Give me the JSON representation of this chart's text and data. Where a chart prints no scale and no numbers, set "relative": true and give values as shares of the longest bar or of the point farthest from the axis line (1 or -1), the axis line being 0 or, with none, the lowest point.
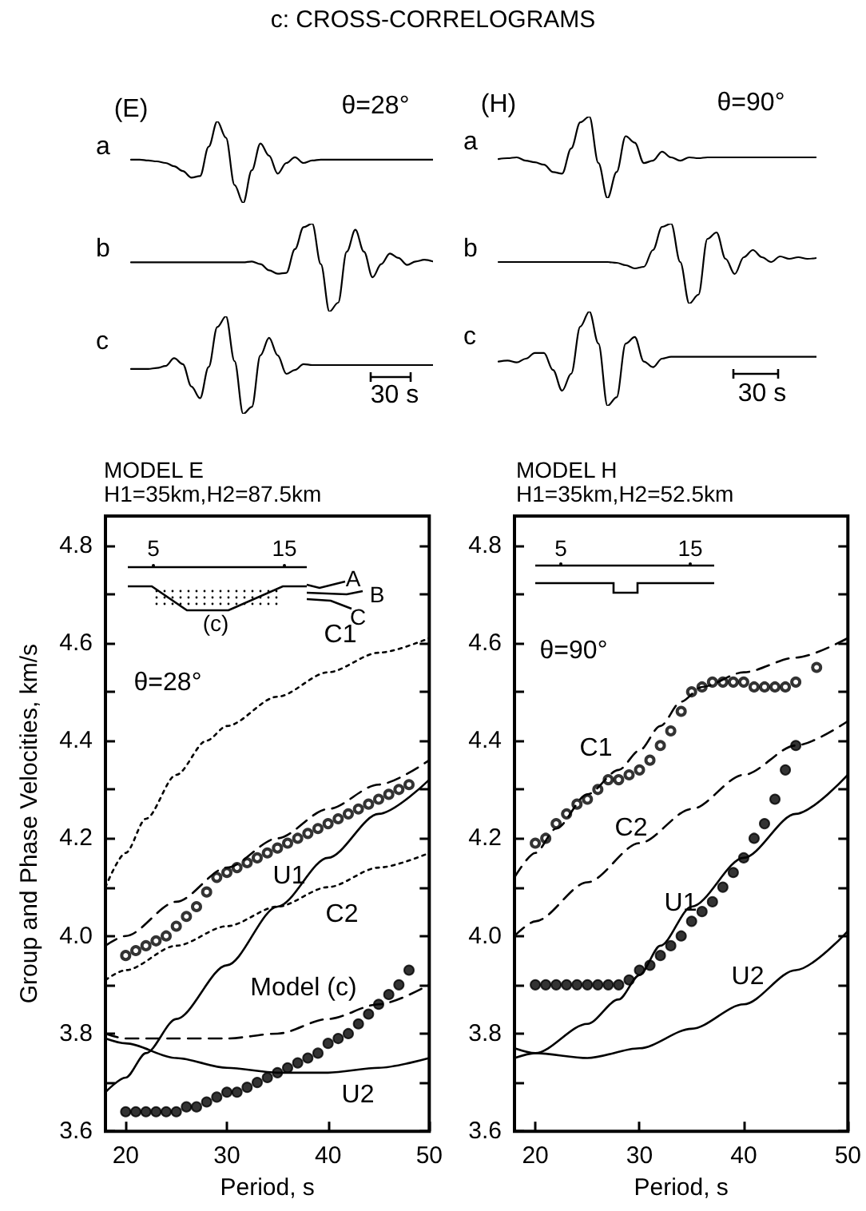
{
  "chart_data": [
    {
      "type": "line",
      "title": "c: CROSS-CORRELOGRAMS",
      "relative": true,
      "ylabel": "a",
      "annotations": [
        "(E)",
        "θ=28°"
      ],
      "categories": [
        null,
        null,
        null,
        null,
        null,
        null,
        null,
        null,
        null,
        null,
        null,
        null,
        null,
        null,
        null,
        null,
        null,
        null,
        null,
        null,
        null,
        null,
        null,
        null,
        null,
        null,
        null,
        null,
        null,
        null,
        null,
        null,
        null,
        null,
        null,
        null
      ],
      "series": [
        {
          "color": "#000000",
          "values": [
            0.53,
            0.53,
            0.52,
            0.51,
            0.49,
            0.45,
            0.39,
            0.31,
            0.33,
            0.69,
            1,
            0.8,
            0.22,
            0,
            0.4,
            0.73,
            0.58,
            0.36,
            0.49,
            0.56,
            0.49,
            0.52,
            0.53,
            0.53,
            0.53,
            0.53,
            0.53,
            0.53,
            0.53,
            0.53,
            0.53,
            0.53,
            0.53,
            0.53,
            0.53,
            0.53
          ]
        }
      ]
    },
    {
      "type": "line",
      "relative": true,
      "ylabel": "b",
      "categories": [
        null,
        null,
        null,
        null,
        null,
        null,
        null,
        null,
        null,
        null,
        null,
        null,
        null,
        null,
        null,
        null,
        null,
        null,
        null,
        null,
        null,
        null,
        null,
        null,
        null,
        null,
        null,
        null,
        null,
        null,
        null,
        null,
        null,
        null,
        null,
        null
      ],
      "series": [
        {
          "color": "#000000",
          "values": [
            0.56,
            0.56,
            0.56,
            0.56,
            0.56,
            0.56,
            0.56,
            0.56,
            0.56,
            0.56,
            0.56,
            0.56,
            0.56,
            0.56,
            0.57,
            0.54,
            0.47,
            0.43,
            0.44,
            0.71,
            0.96,
            1,
            0.54,
            0,
            0.1,
            0.68,
            0.93,
            0.68,
            0.39,
            0.54,
            0.66,
            0.61,
            0.53,
            0.57,
            0.59,
            0.57
          ]
        }
      ]
    },
    {
      "type": "line",
      "relative": true,
      "ylabel": "c",
      "annotations": [
        "30 s"
      ],
      "categories": [
        null,
        null,
        null,
        null,
        null,
        null,
        null,
        null,
        null,
        null,
        null,
        null,
        null,
        null,
        null,
        null,
        null,
        null,
        null,
        null,
        null,
        null,
        null,
        null,
        null,
        null,
        null,
        null,
        null,
        null,
        null,
        null,
        null,
        null,
        null,
        null
      ],
      "series": [
        {
          "color": "#000000",
          "values": [
            0.46,
            0.46,
            0.46,
            0.47,
            0.49,
            0.57,
            0.51,
            0.28,
            0.16,
            0.48,
            0.89,
            1,
            0.54,
            0,
            0.07,
            0.6,
            0.78,
            0.6,
            0.41,
            0.45,
            0.51,
            0.5,
            0.5,
            0.5,
            0.5,
            0.5,
            0.5,
            0.5,
            0.5,
            0.5,
            0.5,
            0.5,
            0.5,
            0.5,
            0.5,
            0.5
          ]
        }
      ]
    },
    {
      "type": "line",
      "relative": true,
      "ylabel": "a",
      "annotations": [
        "(H)",
        "θ=90°"
      ],
      "categories": [
        null,
        null,
        null,
        null,
        null,
        null,
        null,
        null,
        null,
        null,
        null,
        null,
        null,
        null,
        null,
        null,
        null,
        null,
        null,
        null,
        null,
        null,
        null,
        null,
        null,
        null,
        null,
        null,
        null,
        null,
        null,
        null,
        null,
        null,
        null,
        null
      ],
      "series": [
        {
          "color": "#000000",
          "values": [
            0.48,
            0.49,
            0.5,
            0.46,
            0.44,
            0.41,
            0.32,
            0.3,
            0.61,
            0.93,
            1,
            0.43,
            0,
            0.32,
            0.76,
            0.68,
            0.43,
            0.46,
            0.57,
            0.5,
            0.46,
            0.5,
            0.49,
            0.5,
            0.5,
            0.5,
            0.5,
            0.5,
            0.5,
            0.5,
            0.5,
            0.5,
            0.5,
            0.5,
            0.5,
            0.5
          ]
        }
      ]
    },
    {
      "type": "line",
      "relative": true,
      "ylabel": "b",
      "categories": [
        null,
        null,
        null,
        null,
        null,
        null,
        null,
        null,
        null,
        null,
        null,
        null,
        null,
        null,
        null,
        null,
        null,
        null,
        null,
        null,
        null,
        null,
        null,
        null,
        null,
        null,
        null,
        null,
        null,
        null,
        null,
        null,
        null,
        null,
        null,
        null
      ],
      "series": [
        {
          "color": "#000000",
          "values": [
            0.52,
            0.52,
            0.52,
            0.52,
            0.52,
            0.52,
            0.52,
            0.52,
            0.52,
            0.52,
            0.52,
            0.52,
            0.52,
            0.51,
            0.48,
            0.44,
            0.46,
            0.67,
            0.96,
            1,
            0.52,
            0,
            0.11,
            0.81,
            0.89,
            0.56,
            0.37,
            0.58,
            0.67,
            0.58,
            0.52,
            0.59,
            0.56,
            0.58,
            0.56,
            0.57
          ]
        }
      ]
    },
    {
      "type": "line",
      "relative": true,
      "ylabel": "c",
      "annotations": [
        "30 s"
      ],
      "categories": [
        null,
        null,
        null,
        null,
        null,
        null,
        null,
        null,
        null,
        null,
        null,
        null,
        null,
        null,
        null,
        null,
        null,
        null,
        null,
        null,
        null,
        null,
        null,
        null,
        null,
        null,
        null,
        null,
        null,
        null,
        null,
        null,
        null,
        null,
        null,
        null
      ],
      "series": [
        {
          "color": "#000000",
          "values": [
            0.47,
            0.48,
            0.46,
            0.5,
            0.56,
            0.56,
            0.38,
            0.16,
            0.34,
            0.84,
            1,
            0.66,
            0,
            0.09,
            0.66,
            0.73,
            0.47,
            0.41,
            0.5,
            0.52,
            0.52,
            0.52,
            0.52,
            0.52,
            0.52,
            0.52,
            0.52,
            0.52,
            0.52,
            0.52,
            0.52,
            0.52,
            0.52,
            0.52,
            0.52,
            0.52
          ]
        }
      ]
    },
    {
      "type": "line",
      "title": "MODEL E",
      "subtitle": "H1=35km,H2=87.5km",
      "xlabel": "Period, s",
      "ylabel": "Group and Phase Velocities, km/s",
      "xlim": [
        18,
        50
      ],
      "ylim": [
        3.6,
        4.86
      ],
      "xticks": [
        20,
        30,
        40,
        50
      ],
      "yticks": [
        {
          "value": 3.6,
          "label": "3.6"
        },
        {
          "value": 3.7,
          "label": null
        },
        {
          "value": 3.8,
          "label": "3.8"
        },
        {
          "value": 3.9,
          "label": null
        },
        {
          "value": 4.0,
          "label": "4.0"
        },
        {
          "value": 4.1,
          "label": null
        },
        {
          "value": 4.2,
          "label": "4.2"
        },
        {
          "value": 4.3,
          "label": null
        },
        {
          "value": 4.4,
          "label": "4.4"
        },
        {
          "value": 4.5,
          "label": null
        },
        {
          "value": 4.6,
          "label": "4.6"
        },
        {
          "value": 4.7,
          "label": null
        },
        {
          "value": 4.8,
          "label": "4.8"
        }
      ],
      "series": [
        {
          "type": "line",
          "name": "C1",
          "line_style": "dotted",
          "color": "#000000",
          "x": [
            18,
            20,
            22,
            25,
            28,
            30,
            35,
            40,
            45,
            50
          ],
          "values": [
            4.1,
            4.17,
            4.24,
            4.33,
            4.4,
            4.43,
            4.49,
            4.54,
            4.58,
            4.61
          ]
        },
        {
          "type": "line",
          "name": "C2",
          "line_style": "dotted",
          "color": "#000000",
          "x": [
            18,
            20,
            25,
            30,
            35,
            40,
            45,
            50
          ],
          "values": [
            3.91,
            3.93,
            3.98,
            4.02,
            4.06,
            4.1,
            4.14,
            4.17
          ]
        },
        {
          "type": "line",
          "line_style": "dashed",
          "color": "#000000",
          "x": [
            18,
            20,
            25,
            30,
            35,
            40,
            45,
            50
          ],
          "values": [
            3.98,
            4.0,
            4.07,
            4.14,
            4.2,
            4.26,
            4.31,
            4.36
          ]
        },
        {
          "type": "line",
          "line_style": "dashed",
          "color": "#000000",
          "x": [
            18,
            20,
            25,
            30,
            35,
            40,
            45,
            50
          ],
          "values": [
            3.8,
            3.79,
            3.79,
            3.79,
            3.8,
            3.83,
            3.86,
            3.9
          ]
        },
        {
          "type": "line",
          "name": "U1",
          "line_style": "solid",
          "color": "#000000",
          "x": [
            18,
            20,
            22,
            25,
            30,
            35,
            40,
            45,
            50
          ],
          "values": [
            3.68,
            3.71,
            3.76,
            3.83,
            3.94,
            4.06,
            4.16,
            4.25,
            4.32
          ]
        },
        {
          "type": "line",
          "name": "U2",
          "line_style": "solid",
          "color": "#000000",
          "x": [
            18,
            20,
            25,
            30,
            35,
            40,
            45,
            50
          ],
          "values": [
            3.79,
            3.78,
            3.75,
            3.73,
            3.72,
            3.72,
            3.73,
            3.75
          ]
        },
        {
          "type": "scatter",
          "marker": "circle",
          "color": "#000000",
          "x": [
            20,
            21,
            22,
            23,
            24,
            25,
            26,
            27,
            28,
            29,
            30,
            31,
            32,
            33,
            34,
            35,
            36,
            37,
            38,
            39,
            40,
            41,
            42,
            43,
            44,
            45,
            46,
            47,
            48
          ],
          "values": [
            3.96,
            3.97,
            3.98,
            3.99,
            4.0,
            4.02,
            4.04,
            4.06,
            4.09,
            4.12,
            4.13,
            4.14,
            4.15,
            4.16,
            4.17,
            4.18,
            4.19,
            4.2,
            4.21,
            4.22,
            4.23,
            4.24,
            4.25,
            4.26,
            4.27,
            4.28,
            4.29,
            4.3,
            4.31
          ]
        },
        {
          "type": "scatter",
          "color": "#000000",
          "x": [
            20,
            21,
            22,
            23,
            24,
            25,
            26,
            27,
            28,
            29,
            30,
            31,
            32,
            33,
            34,
            35,
            36,
            37,
            38,
            39,
            40,
            41,
            42,
            43,
            44,
            45,
            46,
            47,
            48
          ],
          "values": [
            3.64,
            3.64,
            3.64,
            3.64,
            3.64,
            3.64,
            3.65,
            3.65,
            3.66,
            3.67,
            3.68,
            3.68,
            3.69,
            3.7,
            3.71,
            3.72,
            3.73,
            3.74,
            3.75,
            3.76,
            3.78,
            3.79,
            3.8,
            3.82,
            3.84,
            3.86,
            3.88,
            3.9,
            3.93
          ]
        }
      ],
      "annotations": [
        "θ=28°",
        "5",
        "15",
        "A",
        "B",
        "C",
        "(c)",
        "Model (c)"
      ]
    },
    {
      "type": "line",
      "title": "MODEL H",
      "subtitle": "H1=35km,H2=52.5km",
      "xlabel": "Period, s",
      "xlim": [
        18,
        50
      ],
      "ylim": [
        3.6,
        4.86
      ],
      "xticks": [
        20,
        30,
        40,
        50
      ],
      "yticks": [
        {
          "value": 3.6,
          "label": "3.6"
        },
        {
          "value": 3.7,
          "label": null
        },
        {
          "value": 3.8,
          "label": "3.8"
        },
        {
          "value": 3.9,
          "label": null
        },
        {
          "value": 4.0,
          "label": "4.0"
        },
        {
          "value": 4.1,
          "label": null
        },
        {
          "value": 4.2,
          "label": "4.2"
        },
        {
          "value": 4.3,
          "label": null
        },
        {
          "value": 4.4,
          "label": "4.4"
        },
        {
          "value": 4.5,
          "label": null
        },
        {
          "value": 4.6,
          "label": "4.6"
        },
        {
          "value": 4.7,
          "label": null
        },
        {
          "value": 4.8,
          "label": "4.8"
        }
      ],
      "series": [
        {
          "type": "line",
          "name": "C1",
          "line_style": "dashed",
          "color": "#000000",
          "x": [
            18,
            20,
            22,
            25,
            28,
            30,
            32,
            34,
            36,
            40,
            45,
            50
          ],
          "values": [
            4.12,
            4.17,
            4.22,
            4.29,
            4.34,
            4.38,
            4.43,
            4.48,
            4.51,
            4.54,
            4.57,
            4.61
          ]
        },
        {
          "type": "line",
          "name": "C2",
          "line_style": "dashed",
          "color": "#000000",
          "x": [
            18,
            20,
            25,
            30,
            35,
            40,
            45,
            50
          ],
          "values": [
            4.0,
            4.03,
            4.11,
            4.19,
            4.26,
            4.33,
            4.39,
            4.44
          ]
        },
        {
          "type": "line",
          "name": "U1",
          "line_style": "solid",
          "color": "#000000",
          "x": [
            18,
            20,
            25,
            28,
            30,
            32,
            35,
            40,
            45,
            50
          ],
          "values": [
            3.75,
            3.76,
            3.82,
            3.87,
            3.92,
            3.98,
            4.06,
            4.16,
            4.25,
            4.33
          ]
        },
        {
          "type": "line",
          "name": "U2",
          "line_style": "solid",
          "color": "#000000",
          "x": [
            18,
            20,
            25,
            30,
            35,
            40,
            45,
            50
          ],
          "values": [
            3.77,
            3.76,
            3.75,
            3.77,
            3.81,
            3.86,
            3.93,
            4.01
          ]
        },
        {
          "type": "scatter",
          "marker": "circle",
          "color": "#000000",
          "x": [
            20,
            21,
            22,
            23,
            24,
            25,
            26,
            27,
            28,
            29,
            30,
            31,
            32,
            33,
            34,
            35,
            36,
            37,
            38,
            39,
            40,
            41,
            42,
            43,
            44,
            45,
            47
          ],
          "values": [
            4.19,
            4.2,
            4.23,
            4.25,
            4.27,
            4.28,
            4.3,
            4.32,
            4.32,
            4.33,
            4.34,
            4.36,
            4.39,
            4.42,
            4.46,
            4.5,
            4.51,
            4.52,
            4.52,
            4.52,
            4.52,
            4.51,
            4.51,
            4.51,
            4.51,
            4.52,
            4.55
          ]
        },
        {
          "type": "scatter",
          "color": "#000000",
          "x": [
            20,
            21,
            22,
            23,
            24,
            25,
            26,
            27,
            28,
            29,
            30,
            31,
            32,
            33,
            34,
            35,
            36,
            37,
            38,
            39,
            40,
            41,
            42,
            43,
            44,
            45
          ],
          "values": [
            3.9,
            3.9,
            3.9,
            3.9,
            3.9,
            3.9,
            3.9,
            3.9,
            3.9,
            3.91,
            3.93,
            3.94,
            3.96,
            3.98,
            4.0,
            4.03,
            4.05,
            4.07,
            4.1,
            4.13,
            4.16,
            4.2,
            4.23,
            4.28,
            4.34,
            4.39
          ]
        }
      ],
      "annotations": [
        "θ=90°",
        "5",
        "15"
      ]
    }
  ]
}
